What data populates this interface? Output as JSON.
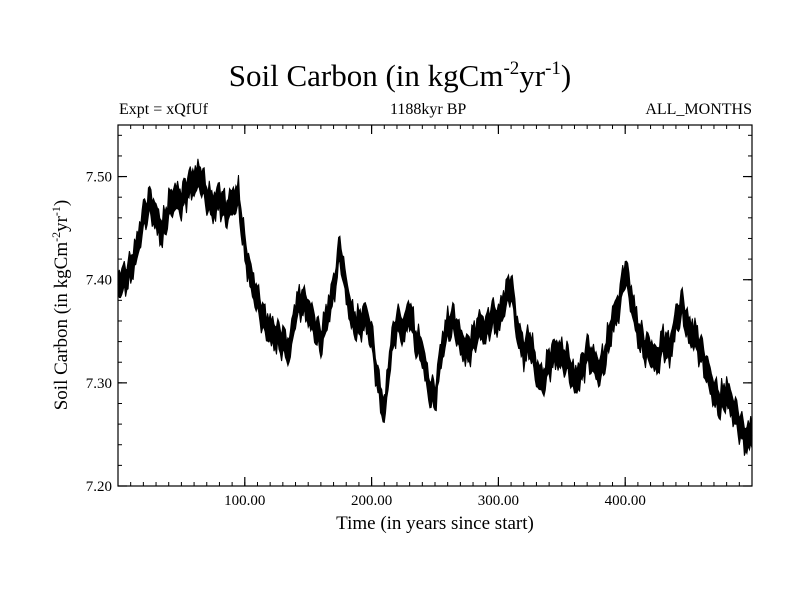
{
  "chart_data": {
    "type": "line",
    "title": {
      "main": "Soil Carbon (in kgCm",
      "exp1": "-2",
      "mid": "yr",
      "exp2": "-1",
      "end": ")"
    },
    "subtitle_left": "Expt = xQfUf",
    "subtitle_center": "1188kyr BP",
    "subtitle_right": "ALL_MONTHS",
    "xlabel": "Time (in years since start)",
    "ylabel": {
      "main": "Soil Carbon (in kgCm",
      "exp1": "-2",
      "mid": "yr",
      "exp2": "-1",
      "end": ")"
    },
    "xlim": [
      0,
      500
    ],
    "ylim": [
      7.2,
      7.55
    ],
    "x_ticks": [
      {
        "value": 100,
        "label": "100.00"
      },
      {
        "value": 200,
        "label": "200.00"
      },
      {
        "value": 300,
        "label": "300.00"
      },
      {
        "value": 400,
        "label": "400.00"
      }
    ],
    "y_ticks": [
      {
        "value": 7.2,
        "label": "7.20"
      },
      {
        "value": 7.3,
        "label": "7.30"
      },
      {
        "value": 7.4,
        "label": "7.40"
      },
      {
        "value": 7.5,
        "label": "7.50"
      }
    ],
    "series": [
      {
        "name": "Soil Carbon",
        "color": "#000000",
        "x": [
          0,
          5,
          10,
          15,
          20,
          25,
          30,
          35,
          40,
          45,
          50,
          55,
          60,
          65,
          70,
          75,
          80,
          85,
          90,
          95,
          100,
          105,
          110,
          115,
          120,
          125,
          130,
          135,
          140,
          145,
          150,
          155,
          160,
          165,
          170,
          175,
          180,
          185,
          190,
          195,
          200,
          205,
          210,
          215,
          220,
          225,
          230,
          235,
          240,
          245,
          250,
          255,
          260,
          265,
          270,
          275,
          280,
          285,
          290,
          295,
          300,
          305,
          310,
          315,
          320,
          325,
          330,
          335,
          340,
          345,
          350,
          355,
          360,
          365,
          370,
          375,
          380,
          385,
          390,
          395,
          400,
          405,
          410,
          415,
          420,
          425,
          430,
          435,
          440,
          445,
          450,
          455,
          460,
          465,
          470,
          475,
          480,
          485,
          490,
          495,
          500
        ],
        "values": [
          7.395,
          7.4,
          7.41,
          7.43,
          7.46,
          7.475,
          7.46,
          7.445,
          7.47,
          7.48,
          7.475,
          7.49,
          7.495,
          7.5,
          7.48,
          7.47,
          7.48,
          7.465,
          7.475,
          7.48,
          7.43,
          7.4,
          7.38,
          7.36,
          7.35,
          7.345,
          7.34,
          7.33,
          7.37,
          7.38,
          7.37,
          7.355,
          7.34,
          7.365,
          7.39,
          7.43,
          7.39,
          7.36,
          7.355,
          7.365,
          7.345,
          7.3,
          7.27,
          7.33,
          7.36,
          7.35,
          7.37,
          7.34,
          7.33,
          7.295,
          7.285,
          7.33,
          7.355,
          7.36,
          7.34,
          7.33,
          7.34,
          7.355,
          7.35,
          7.365,
          7.36,
          7.38,
          7.395,
          7.35,
          7.33,
          7.34,
          7.31,
          7.3,
          7.32,
          7.33,
          7.325,
          7.32,
          7.3,
          7.31,
          7.33,
          7.32,
          7.31,
          7.33,
          7.36,
          7.375,
          7.41,
          7.38,
          7.35,
          7.335,
          7.33,
          7.32,
          7.34,
          7.33,
          7.36,
          7.375,
          7.35,
          7.345,
          7.33,
          7.31,
          7.29,
          7.28,
          7.29,
          7.275,
          7.26,
          7.245,
          7.25
        ],
        "band_halfwidth": 0.009
      }
    ]
  }
}
